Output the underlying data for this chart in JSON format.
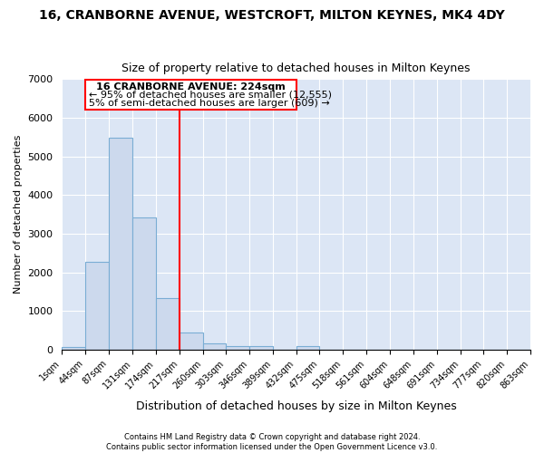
{
  "title": "16, CRANBORNE AVENUE, WESTCROFT, MILTON KEYNES, MK4 4DY",
  "subtitle": "Size of property relative to detached houses in Milton Keynes",
  "xlabel": "Distribution of detached houses by size in Milton Keynes",
  "ylabel": "Number of detached properties",
  "bar_color": "#ccd9ed",
  "bar_edge_color": "#7aadd4",
  "bg_color": "#dce6f5",
  "grid_color": "#ffffff",
  "bins": [
    1,
    44,
    87,
    131,
    174,
    217,
    260,
    303,
    346,
    389,
    432,
    475,
    518,
    561,
    604,
    648,
    691,
    734,
    777,
    820,
    863
  ],
  "values": [
    80,
    2280,
    5480,
    3430,
    1330,
    460,
    170,
    95,
    95,
    0,
    95,
    0,
    0,
    0,
    0,
    0,
    0,
    0,
    0,
    0
  ],
  "red_line_x": 217,
  "annotation_line1": "16 CRANBORNE AVENUE: 224sqm",
  "annotation_line2": "← 95% of detached houses are smaller (12,555)",
  "annotation_line3": "5% of semi-detached houses are larger (609) →",
  "ylim": [
    0,
    7000
  ],
  "xtick_labels": [
    "1sqm",
    "44sqm",
    "87sqm",
    "131sqm",
    "174sqm",
    "217sqm",
    "260sqm",
    "303sqm",
    "346sqm",
    "389sqm",
    "432sqm",
    "475sqm",
    "518sqm",
    "561sqm",
    "604sqm",
    "648sqm",
    "691sqm",
    "734sqm",
    "777sqm",
    "820sqm",
    "863sqm"
  ],
  "footer1": "Contains HM Land Registry data © Crown copyright and database right 2024.",
  "footer2": "Contains public sector information licensed under the Open Government Licence v3.0."
}
